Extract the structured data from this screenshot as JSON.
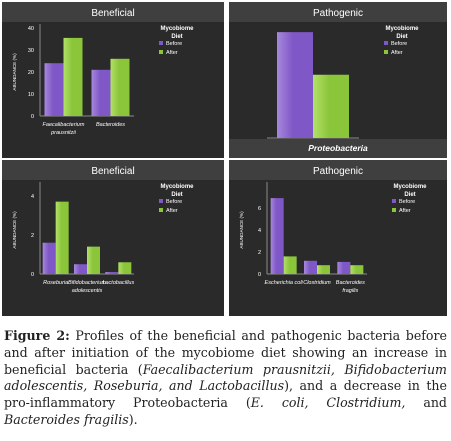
{
  "chart_data": [
    {
      "type": "bar",
      "title": "Beneficial",
      "ylabel": "ABUNDANCE (%)",
      "ylim": [
        0,
        40
      ],
      "yticks": [
        "0",
        "10",
        "20",
        "30",
        "40"
      ],
      "categories": [
        "Faecalibacterium prausnitzii",
        "Bacteroides"
      ],
      "category_labels": [
        [
          "Faecalibacterium",
          "prausnitzii"
        ],
        [
          "Bacteroides"
        ]
      ],
      "series": [
        {
          "name": "Before",
          "values": [
            24,
            21
          ]
        },
        {
          "name": "After",
          "values": [
            35.5,
            26
          ]
        }
      ],
      "legend_title": [
        "Mycobiome",
        "Diet"
      ],
      "legend_position": "top-right",
      "grid": false
    },
    {
      "type": "bar",
      "title": "Pathogenic",
      "ylabel": "",
      "ylim": [
        0,
        40
      ],
      "yticks": [],
      "categories": [
        "Proteobacteria"
      ],
      "category_labels": [
        [
          "Proteobacteria"
        ]
      ],
      "series": [
        {
          "name": "Before",
          "values": [
            38.5
          ]
        },
        {
          "name": "After",
          "values": [
            23
          ]
        }
      ],
      "legend_title": [
        "Mycobiome",
        "Diet"
      ],
      "legend_position": "top-right",
      "grid": false
    },
    {
      "type": "bar",
      "title": "Beneficial",
      "ylabel": "ABUNDANCE (%)",
      "ylim": [
        0,
        4.5
      ],
      "yticks": [
        "0",
        "2",
        "4"
      ],
      "categories": [
        "Roseburia",
        "Bifidobacterium adolescentis",
        "Lactobacillus"
      ],
      "category_labels": [
        [
          "Roseburia"
        ],
        [
          "Bifidobacterium",
          "adolescentis"
        ],
        [
          "Lactobacillus"
        ]
      ],
      "series": [
        {
          "name": "Before",
          "values": [
            1.6,
            0.5,
            0.1
          ]
        },
        {
          "name": "After",
          "values": [
            3.7,
            1.4,
            0.6
          ]
        }
      ],
      "legend_title": [
        "Mycobiome",
        "Diet"
      ],
      "legend_position": "top-right",
      "grid": false
    },
    {
      "type": "bar",
      "title": "Pathogenic",
      "ylabel": "ABUNDANCE (%)",
      "ylim": [
        0,
        8
      ],
      "yticks": [
        "0",
        "2",
        "4",
        "6"
      ],
      "categories": [
        "Escherichia coli",
        "Clostridium",
        "Bacteroides fragilis"
      ],
      "category_labels": [
        [
          "Escherichia coli"
        ],
        [
          "Clostridium"
        ],
        [
          "Bacteroides",
          "fragilis"
        ]
      ],
      "series": [
        {
          "name": "Before",
          "values": [
            6.9,
            1.2,
            1.1
          ]
        },
        {
          "name": "After",
          "values": [
            1.6,
            0.8,
            0.8
          ]
        }
      ],
      "legend_title": [
        "Mycobiome",
        "Diet"
      ],
      "legend_position": "top-right",
      "grid": false
    }
  ],
  "colors": {
    "panel_bg": "#2a2a2a",
    "title_band": "#3f3f3f",
    "before": "#7f57c7",
    "before_light": "#a688dc",
    "after": "#8bc53a",
    "after_light": "#b2e068",
    "text": "#ffffff",
    "axis": "#8a8a8a"
  },
  "caption": {
    "label": "Figure 2:",
    "parts": [
      {
        "text": " Profiles of the beneficial and pathogenic bacteria before and after initiation of the mycobiome diet showing an increase in beneficial bacteria (",
        "italic": false
      },
      {
        "text": "Faecalibacterium prausnitzii, Bifidobacterium adolescentis, Roseburia, and Lactobacillus",
        "italic": true
      },
      {
        "text": "), and a decrease in the pro-inflammatory Proteobacteria (",
        "italic": false
      },
      {
        "text": "E. coli, Clostridium,",
        "italic": true
      },
      {
        "text": " and ",
        "italic": false
      },
      {
        "text": "Bacteroides fragilis",
        "italic": true
      },
      {
        "text": ").",
        "italic": false
      }
    ]
  }
}
